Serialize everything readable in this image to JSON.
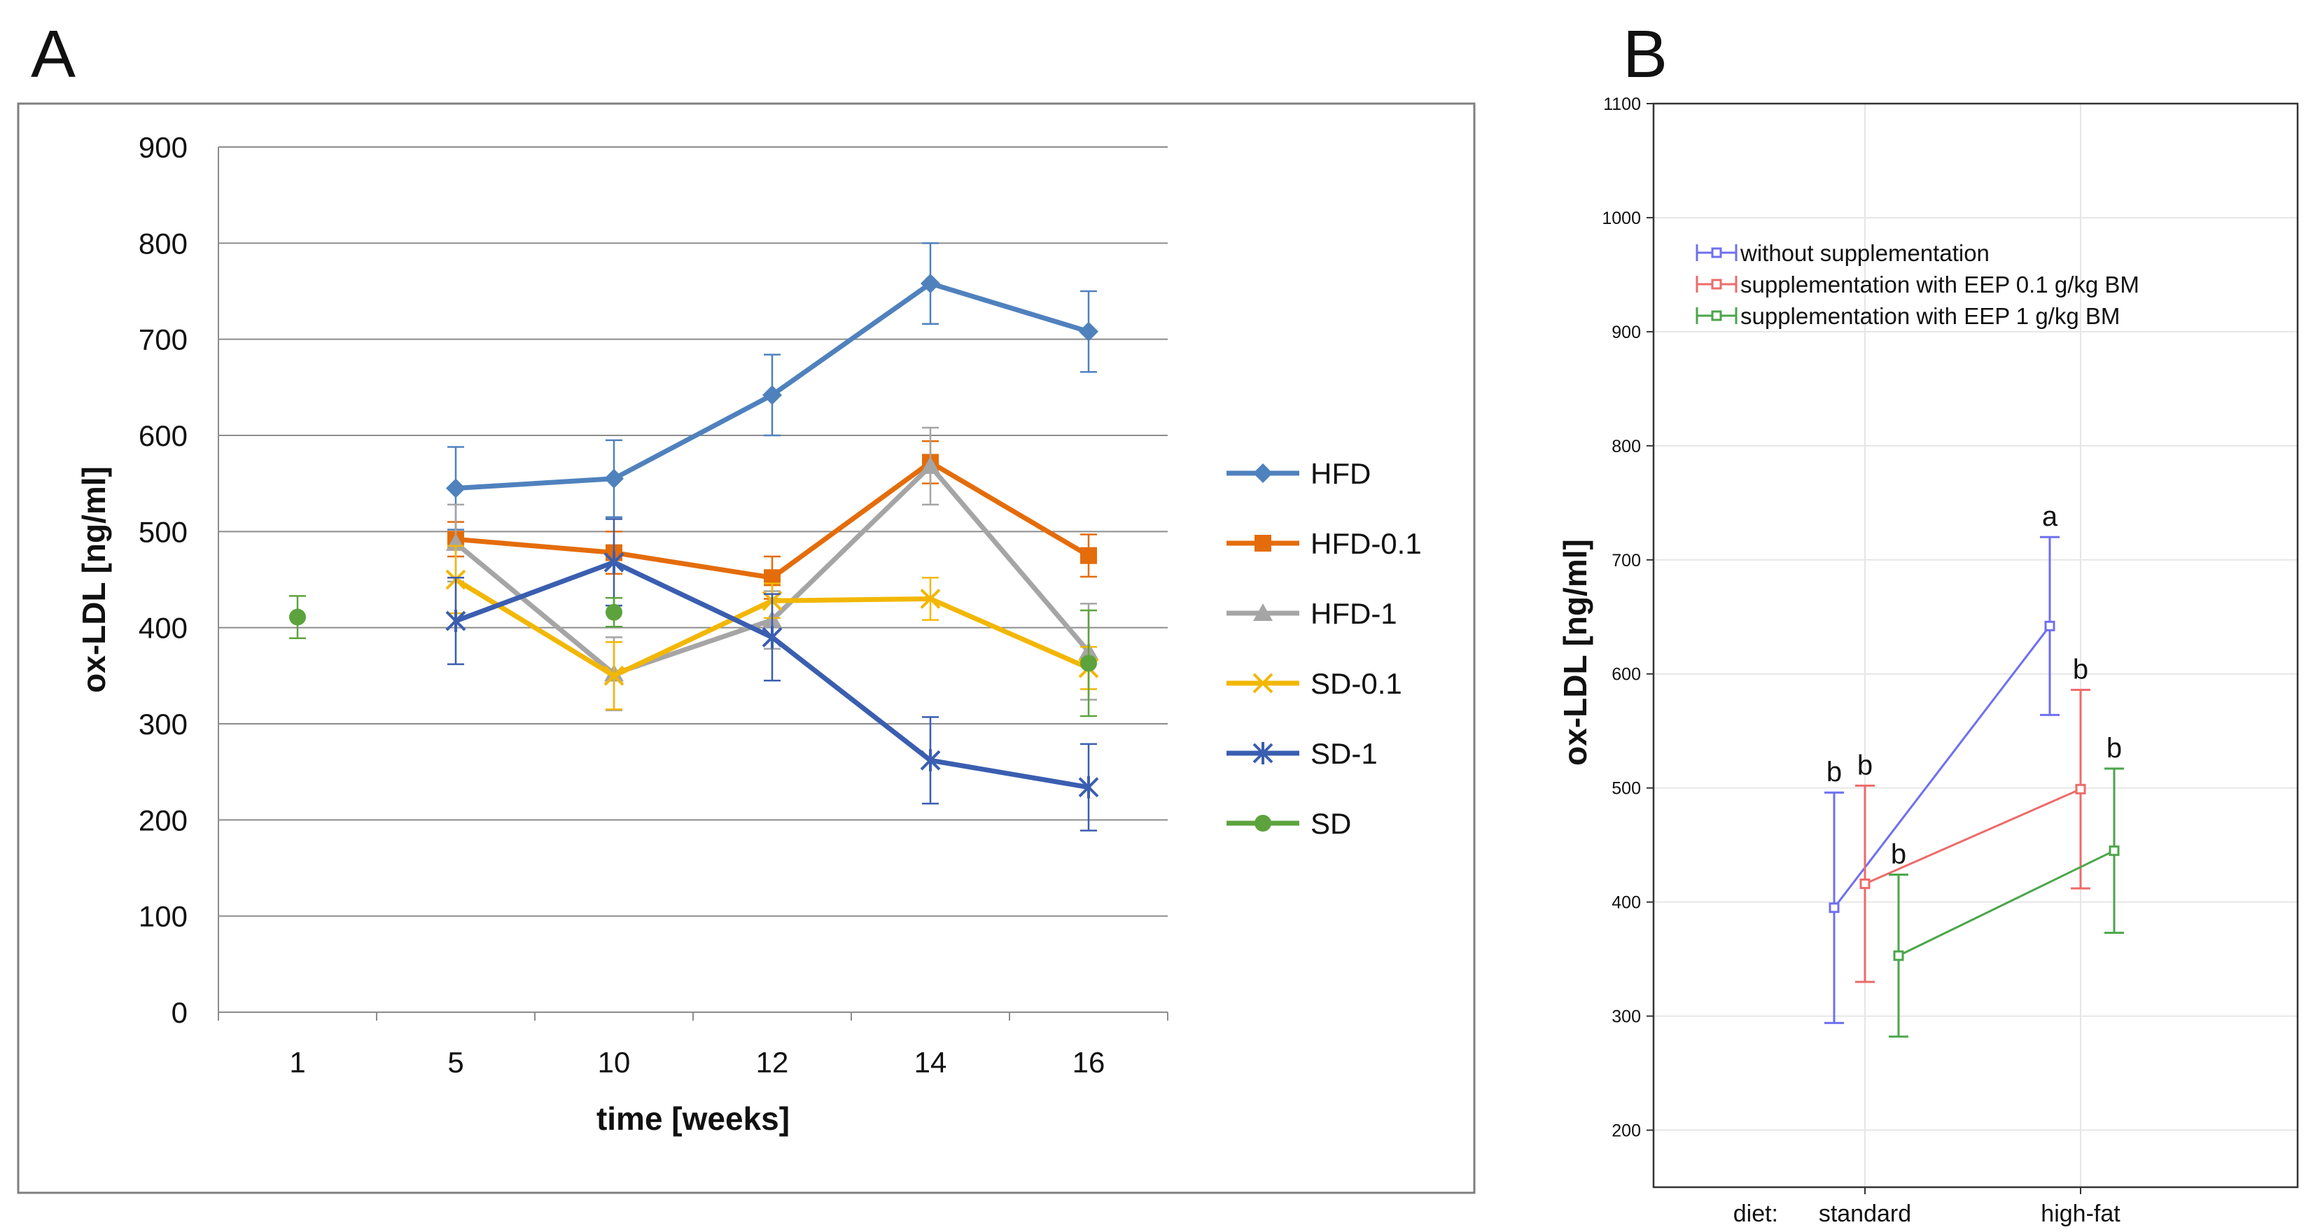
{
  "panel_letters": {
    "a": "A",
    "b": "B"
  },
  "chart_data": [
    {
      "type": "line",
      "panel": "A",
      "title": "",
      "xlabel": "time [weeks]",
      "ylabel": "ox-LDL [ng/ml]",
      "categories": [
        "1",
        "5",
        "10",
        "12",
        "14",
        "16"
      ],
      "ylim": [
        0,
        900
      ],
      "yticks": [
        "0",
        "100",
        "200",
        "300",
        "400",
        "500",
        "600",
        "700",
        "800",
        "900"
      ],
      "grid": true,
      "legend_position": "right",
      "series": [
        {
          "name": "HFD",
          "color": "#4f81bd",
          "marker": "diamond",
          "values": [
            null,
            545,
            555,
            642,
            758,
            708
          ],
          "errors": [
            null,
            43,
            40,
            42,
            42,
            42
          ]
        },
        {
          "name": "HFD-0.1",
          "color": "#e46c0a",
          "marker": "square",
          "values": [
            null,
            492,
            478,
            452,
            572,
            475
          ],
          "errors": [
            null,
            18,
            22,
            22,
            22,
            22
          ]
        },
        {
          "name": "HFD-1",
          "color": "#a5a5a5",
          "marker": "triangle",
          "values": [
            null,
            488,
            352,
            408,
            568,
            375
          ],
          "errors": [
            null,
            40,
            38,
            30,
            40,
            50
          ]
        },
        {
          "name": "SD-0.1",
          "color": "#f2b705",
          "marker": "x",
          "values": [
            null,
            450,
            350,
            428,
            430,
            358
          ],
          "errors": [
            null,
            35,
            35,
            18,
            22,
            22
          ]
        },
        {
          "name": "SD-1",
          "color": "#3a5eb0",
          "marker": "star",
          "values": [
            null,
            407,
            468,
            390,
            262,
            234
          ],
          "errors": [
            null,
            45,
            45,
            45,
            45,
            45
          ]
        },
        {
          "name": "SD",
          "color": "#5ca33d",
          "marker": "circle",
          "values": [
            411,
            null,
            416,
            null,
            null,
            363
          ],
          "errors": [
            22,
            null,
            15,
            null,
            null,
            55
          ]
        }
      ]
    },
    {
      "type": "line",
      "panel": "B",
      "title": "",
      "xlabel": "",
      "ylabel": "ox-LDL [ng/ml]",
      "categories": [
        "standard",
        "high-fat"
      ],
      "category_prefix": "diet:",
      "ylim": [
        150,
        1100
      ],
      "yticks": [
        "200",
        "300",
        "400",
        "500",
        "600",
        "700",
        "800",
        "900",
        "1000",
        "1100"
      ],
      "grid": true,
      "legend_position": "top-left",
      "series": [
        {
          "name": "without  supplementation",
          "color": "#6f6ff0",
          "values": [
            395,
            642
          ],
          "errors": [
            101,
            78
          ],
          "labels": [
            "b",
            "a"
          ]
        },
        {
          "name": "supplementation  with  EEP 0.1 g/kg BM",
          "color": "#ee6a6a",
          "values": [
            416,
            499
          ],
          "errors": [
            86,
            87
          ],
          "labels": [
            "b",
            "b"
          ]
        },
        {
          "name": "supplementation  with  EEP 1 g/kg BM",
          "color": "#4aa64a",
          "values": [
            353,
            445
          ],
          "errors": [
            71,
            72
          ],
          "labels": [
            "b",
            "b"
          ]
        }
      ]
    }
  ]
}
